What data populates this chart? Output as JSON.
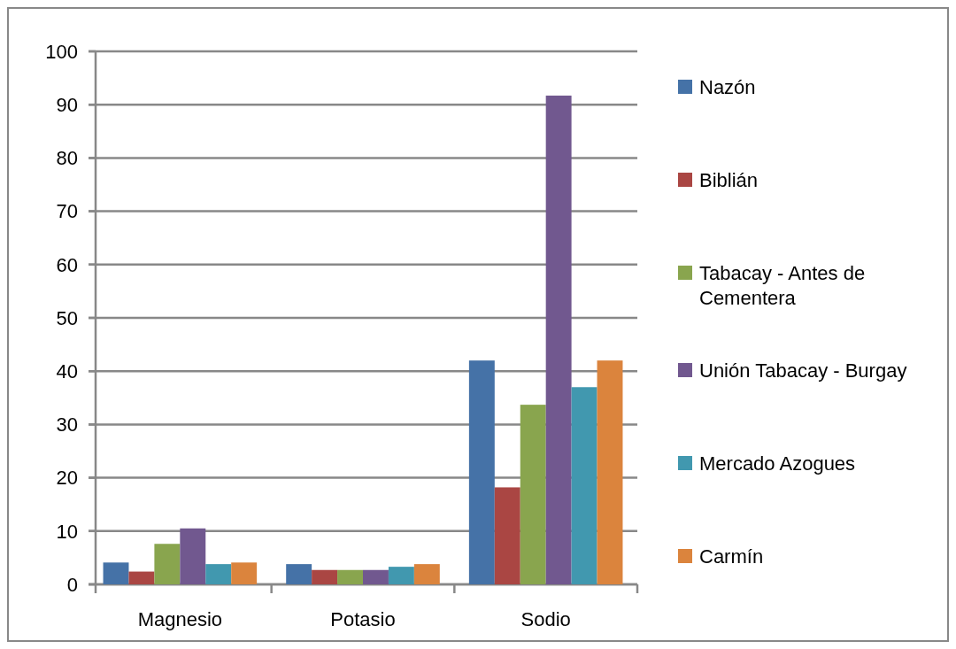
{
  "chart_data": {
    "type": "bar",
    "categories": [
      "Magnesio",
      "Potasio",
      "Sodio"
    ],
    "series": [
      {
        "name": "Nazón",
        "color": "#4572a7",
        "values": [
          4.1,
          3.8,
          42
        ]
      },
      {
        "name": "Biblián",
        "color": "#aa4643",
        "values": [
          2.4,
          2.7,
          18.2
        ]
      },
      {
        "name": "Tabacay - Antes de Cementera",
        "color": "#89a54e",
        "values": [
          7.6,
          2.7,
          33.7
        ]
      },
      {
        "name": "Unión Tabacay - Burgay",
        "color": "#71588f",
        "values": [
          10.5,
          2.7,
          91.7
        ]
      },
      {
        "name": "Mercado Azogues",
        "color": "#4198af",
        "values": [
          3.8,
          3.3,
          37
        ]
      },
      {
        "name": "Carmín",
        "color": "#db843d",
        "values": [
          4.1,
          3.8,
          42
        ]
      }
    ],
    "ylim": [
      0,
      100
    ],
    "yticks": [
      0,
      10,
      20,
      30,
      40,
      50,
      60,
      70,
      80,
      90,
      100
    ],
    "grid": "y",
    "legend": "right"
  }
}
